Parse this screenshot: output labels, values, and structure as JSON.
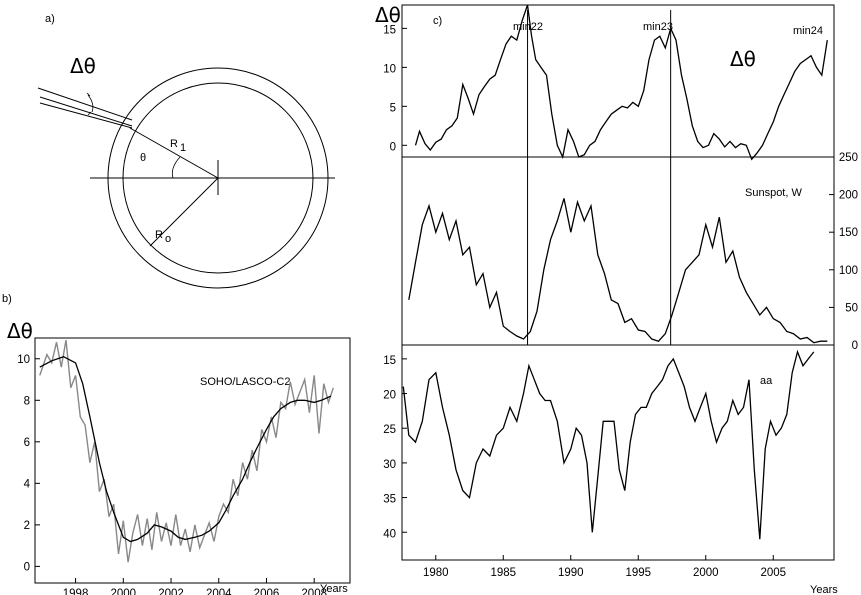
{
  "panel_a": {
    "label": "a)",
    "delta_theta": "Δθ",
    "r1": "R",
    "r1_sub": "1",
    "r0": "R",
    "r0_sub": "o",
    "theta": "θ"
  },
  "panel_b": {
    "label": "b)",
    "ylabel": "Δθ",
    "title": "SOHO/LASCO-C2",
    "xlabel": "Years"
  },
  "panel_c": {
    "label": "c)",
    "ylabel": "Δθ",
    "xlabel": "Years",
    "minima": [
      "min22",
      "min23",
      "min24"
    ],
    "big_label": "Δθ",
    "sunspot_label": "Sunspot, W",
    "aa_label": "aa",
    "vlines": [
      1986.8,
      1997.4
    ]
  },
  "chart_data": [
    {
      "type": "line",
      "panel": "b",
      "title": "SOHO/LASCO-C2",
      "ylabel": "Δθ",
      "xlabel": "Years",
      "xlim": [
        1996.3,
        2009.5
      ],
      "ylim": [
        -0.8,
        11
      ],
      "xticks": [
        1998,
        2000,
        2002,
        2004,
        2006,
        2008
      ],
      "yticks": [
        0,
        2,
        4,
        6,
        8,
        10
      ],
      "series": [
        {
          "color": "#888888",
          "x": [
            1996.5,
            1996.8,
            1997.0,
            1997.2,
            1997.4,
            1997.6,
            1997.8,
            1998.0,
            1998.2,
            1998.4,
            1998.6,
            1998.8,
            1999.0,
            1999.2,
            1999.4,
            1999.6,
            1999.8,
            2000.0,
            2000.2,
            2000.4,
            2000.6,
            2000.8,
            2001.0,
            2001.2,
            2001.4,
            2001.6,
            2001.8,
            2002.0,
            2002.2,
            2002.4,
            2002.6,
            2002.8,
            2003.0,
            2003.2,
            2003.4,
            2003.6,
            2003.8,
            2004.0,
            2004.2,
            2004.4,
            2004.6,
            2004.8,
            2005.0,
            2005.2,
            2005.4,
            2005.6,
            2005.8,
            2006.0,
            2006.2,
            2006.4,
            2006.6,
            2006.8,
            2007.0,
            2007.2,
            2007.4,
            2007.6,
            2007.8,
            2008.0,
            2008.2,
            2008.4,
            2008.6,
            2008.8
          ],
          "y": [
            9.2,
            10.2,
            9.8,
            10.8,
            9.6,
            10.9,
            8.6,
            9.2,
            7.2,
            6.8,
            5.0,
            6.0,
            3.6,
            4.2,
            2.4,
            3.0,
            0.6,
            2.2,
            0.2,
            1.6,
            2.5,
            1.0,
            2.3,
            0.8,
            2.6,
            1.2,
            2.1,
            1.0,
            2.5,
            1.0,
            1.8,
            0.7,
            2.0,
            0.9,
            1.5,
            2.1,
            1.2,
            2.4,
            3.0,
            2.6,
            4.2,
            3.4,
            5.0,
            4.2,
            5.6,
            4.6,
            6.6,
            6.0,
            7.2,
            6.2,
            7.9,
            7.6,
            8.9,
            7.8,
            8.4,
            9.0,
            7.4,
            9.2,
            6.4,
            8.8,
            7.9,
            8.6
          ]
        },
        {
          "color": "#000000",
          "x": [
            1996.5,
            1997.0,
            1997.5,
            1998.0,
            1998.3,
            1998.6,
            1999.0,
            1999.3,
            1999.6,
            2000.0,
            2000.3,
            2000.6,
            2001.0,
            2001.3,
            2001.6,
            2002.0,
            2002.3,
            2002.6,
            2003.0,
            2003.3,
            2003.6,
            2004.0,
            2004.3,
            2004.6,
            2005.0,
            2005.3,
            2005.6,
            2006.0,
            2006.3,
            2006.6,
            2007.0,
            2007.3,
            2007.6,
            2008.0,
            2008.3,
            2008.7
          ],
          "y": [
            9.6,
            9.9,
            10.1,
            9.8,
            8.8,
            7.2,
            5.0,
            3.6,
            2.6,
            1.4,
            1.2,
            1.3,
            1.6,
            2.0,
            1.9,
            1.7,
            1.4,
            1.3,
            1.4,
            1.5,
            1.7,
            2.1,
            2.7,
            3.4,
            4.2,
            5.0,
            5.7,
            6.6,
            7.2,
            7.6,
            7.9,
            8.0,
            8.0,
            7.9,
            8.0,
            8.2
          ]
        }
      ]
    },
    {
      "type": "line",
      "panel": "c-top",
      "ylabel": "Δθ",
      "xlim": [
        1977.5,
        2009.5
      ],
      "ylim": [
        -1.5,
        18
      ],
      "yticks": [
        0,
        5,
        10,
        15
      ],
      "series": [
        {
          "color": "#000000",
          "x": [
            1978.5,
            1978.8,
            1979.2,
            1979.6,
            1980.0,
            1980.4,
            1980.8,
            1981.2,
            1981.6,
            1982.0,
            1982.4,
            1982.8,
            1983.2,
            1983.6,
            1984.0,
            1984.4,
            1984.8,
            1985.2,
            1985.6,
            1986.0,
            1986.4,
            1986.8,
            1987.1,
            1987.4,
            1987.8,
            1988.2,
            1988.6,
            1989.0,
            1989.4,
            1989.8,
            1990.2,
            1990.6,
            1991.0,
            1991.4,
            1991.8,
            1992.2,
            1992.6,
            1993.0,
            1993.4,
            1993.8,
            1994.2,
            1994.6,
            1995.0,
            1995.4,
            1995.8,
            1996.2,
            1996.6,
            1997.0,
            1997.4,
            1997.8,
            1998.2,
            1998.6,
            1999.0,
            1999.4,
            1999.8,
            2000.2,
            2000.6,
            2001.0,
            2001.4,
            2001.8,
            2002.2,
            2002.6,
            2003.0,
            2003.4,
            2003.8,
            2004.2,
            2004.6,
            2005.0,
            2005.4,
            2005.8,
            2006.2,
            2006.6,
            2007.0,
            2007.4,
            2007.8,
            2008.2,
            2008.6,
            2009.0
          ],
          "y": [
            0.0,
            1.8,
            0.2,
            -0.6,
            0.4,
            0.8,
            2.0,
            2.5,
            3.5,
            7.8,
            6.0,
            4.0,
            6.5,
            7.5,
            8.5,
            9.0,
            11.0,
            13.0,
            14.0,
            13.5,
            16.0,
            18.0,
            14.0,
            11.0,
            10.0,
            9.0,
            4.0,
            0.0,
            -1.5,
            2.0,
            0.5,
            -1.5,
            -1.2,
            0.0,
            0.5,
            2.0,
            3.0,
            4.0,
            4.5,
            5.0,
            4.8,
            5.5,
            5.0,
            7.0,
            11.0,
            13.5,
            14.0,
            12.5,
            15.0,
            13.5,
            9.0,
            6.0,
            2.5,
            0.5,
            -0.3,
            0.0,
            1.5,
            0.8,
            -0.2,
            0.5,
            -0.3,
            0.2,
            0.0,
            -1.8,
            -1.0,
            0.0,
            1.5,
            3.0,
            5.0,
            6.5,
            8.0,
            9.5,
            10.5,
            11.0,
            11.5,
            10.0,
            9.0,
            13.5
          ]
        }
      ]
    },
    {
      "type": "line",
      "panel": "c-middle",
      "title": "Sunspot, W",
      "xlim": [
        1977.5,
        2009.5
      ],
      "ylim": [
        0,
        250
      ],
      "yticks": [
        0,
        50,
        100,
        150,
        200,
        250
      ],
      "series": [
        {
          "color": "#000000",
          "x": [
            1978.0,
            1978.5,
            1979.0,
            1979.5,
            1980.0,
            1980.5,
            1981.0,
            1981.5,
            1982.0,
            1982.5,
            1983.0,
            1983.5,
            1984.0,
            1984.5,
            1985.0,
            1985.5,
            1986.0,
            1986.5,
            1987.0,
            1987.5,
            1988.0,
            1988.5,
            1989.0,
            1989.5,
            1990.0,
            1990.5,
            1991.0,
            1991.5,
            1992.0,
            1992.5,
            1993.0,
            1993.5,
            1994.0,
            1994.5,
            1995.0,
            1995.5,
            1996.0,
            1996.5,
            1997.0,
            1997.5,
            1998.0,
            1998.5,
            1999.0,
            1999.5,
            2000.0,
            2000.5,
            2001.0,
            2001.5,
            2002.0,
            2002.5,
            2003.0,
            2003.5,
            2004.0,
            2004.5,
            2005.0,
            2005.5,
            2006.0,
            2006.5,
            2007.0,
            2007.5,
            2008.0,
            2008.5,
            2009.0
          ],
          "y": [
            60,
            110,
            160,
            185,
            150,
            175,
            140,
            165,
            120,
            130,
            80,
            95,
            50,
            70,
            25,
            18,
            12,
            8,
            18,
            45,
            100,
            140,
            165,
            195,
            150,
            190,
            165,
            185,
            120,
            95,
            60,
            55,
            30,
            35,
            20,
            18,
            8,
            5,
            15,
            40,
            70,
            100,
            110,
            120,
            160,
            130,
            170,
            110,
            125,
            90,
            70,
            55,
            40,
            50,
            35,
            30,
            18,
            15,
            8,
            10,
            3,
            5,
            5
          ]
        }
      ]
    },
    {
      "type": "line",
      "panel": "c-bottom",
      "title": "aa",
      "xlabel": "Years",
      "xlim": [
        1977.5,
        2009.5
      ],
      "ylim": [
        13,
        44
      ],
      "ylim_inverted": true,
      "yticks": [
        15,
        20,
        25,
        30,
        35,
        40
      ],
      "xticks": [
        1980,
        1985,
        1990,
        1995,
        2000,
        2005
      ],
      "series": [
        {
          "color": "#000000",
          "x": [
            1977.6,
            1978.0,
            1978.5,
            1979.0,
            1979.5,
            1980.0,
            1980.5,
            1981.0,
            1981.5,
            1982.0,
            1982.5,
            1983.0,
            1983.5,
            1984.0,
            1984.5,
            1985.0,
            1985.5,
            1986.0,
            1986.5,
            1986.9,
            1987.3,
            1987.7,
            1988.1,
            1988.5,
            1989.0,
            1989.5,
            1990.0,
            1990.4,
            1990.8,
            1991.2,
            1991.6,
            1992.0,
            1992.4,
            1992.8,
            1993.2,
            1993.6,
            1994.0,
            1994.4,
            1994.8,
            1995.2,
            1995.6,
            1996.0,
            1996.4,
            1996.8,
            1997.2,
            1997.6,
            1998.0,
            1998.4,
            1998.8,
            1999.2,
            1999.6,
            2000.0,
            2000.4,
            2000.8,
            2001.2,
            2001.6,
            2002.0,
            2002.4,
            2002.8,
            2003.2,
            2003.6,
            2004.0,
            2004.4,
            2004.8,
            2005.2,
            2005.6,
            2006.0,
            2006.4,
            2006.8,
            2007.2,
            2007.6,
            2008.0
          ],
          "y": [
            19,
            26,
            27,
            24,
            18,
            17,
            22,
            26,
            31,
            34,
            35,
            30,
            28,
            29,
            26,
            25,
            22,
            24,
            20,
            16,
            18,
            20,
            21,
            21,
            24,
            30,
            28,
            25,
            26,
            30,
            40,
            32,
            24,
            24,
            24,
            31,
            34,
            27,
            23,
            22,
            22,
            20,
            19,
            18,
            16,
            15,
            17,
            19,
            22,
            24,
            22,
            20,
            24,
            27,
            25,
            24,
            21,
            23,
            22,
            18,
            31,
            41,
            28,
            24,
            26,
            25,
            23,
            17,
            14,
            16,
            15,
            14
          ]
        }
      ]
    }
  ]
}
